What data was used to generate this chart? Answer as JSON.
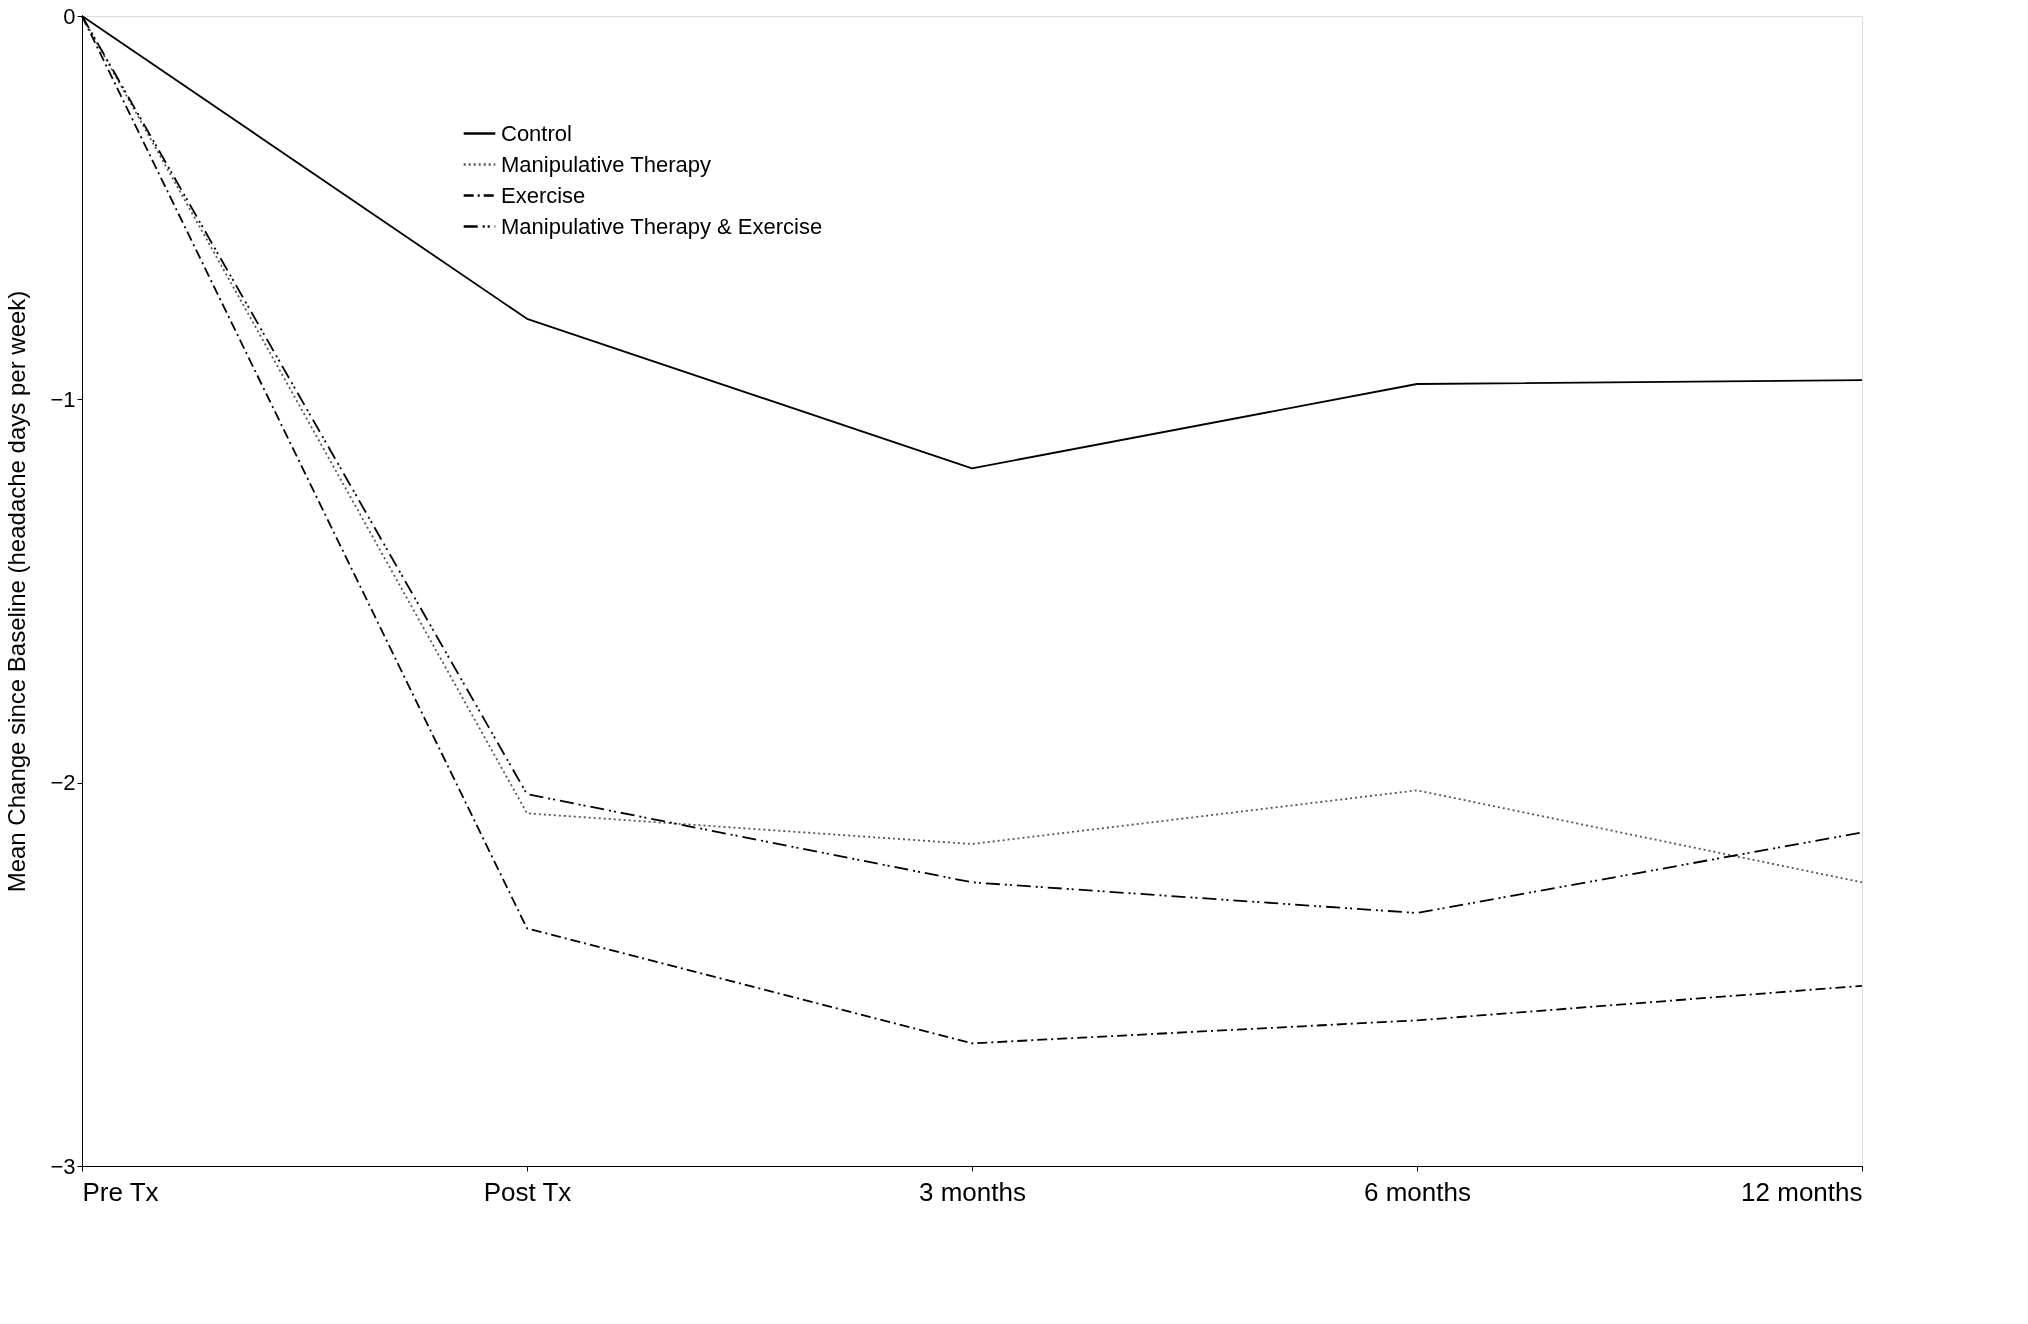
{
  "chart_data": {
    "type": "line",
    "ylabel": "Mean Change since Baseline (headache days per week)",
    "categories": [
      "Pre Tx",
      "Post Tx",
      "3 months",
      "6 months",
      "12 months"
    ],
    "ylim": [
      -3,
      0
    ],
    "yticks": [
      0,
      -1,
      -2,
      -3
    ],
    "grid": false,
    "legend": "top left",
    "marker": "none",
    "series": [
      {
        "name": "Control",
        "color": "#000000",
        "line_style": "solid",
        "values": [
          0,
          -0.79,
          -1.18,
          -0.96,
          -0.95
        ]
      },
      {
        "name": "Manipulative Therapy",
        "color": "#555555",
        "line_style": "dotted",
        "values": [
          0,
          -2.08,
          -2.16,
          -2.02,
          -2.26
        ]
      },
      {
        "name": "Exercise",
        "color": "#000000",
        "line_style": "dashdot",
        "values": [
          0,
          -2.38,
          -2.68,
          -2.62,
          -2.53
        ]
      },
      {
        "name": "Manipulative Therapy & Exercise",
        "color": "#000000",
        "line_style": "longdash",
        "values": [
          0,
          -2.03,
          -2.26,
          -2.34,
          -2.13
        ]
      }
    ]
  }
}
